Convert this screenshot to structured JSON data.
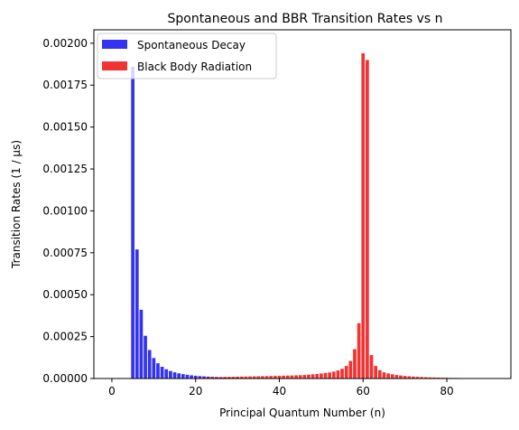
{
  "chart_data": {
    "type": "bar",
    "title": "Spontaneous and BBR Transition Rates vs n",
    "xlabel": "Principal Quantum Number (n)",
    "ylabel": "Transition Rates (1 / μs)",
    "xlim": [
      -4.3,
      95.3
    ],
    "ylim": [
      0,
      0.00208
    ],
    "xticks": [
      0,
      20,
      40,
      60,
      80
    ],
    "yticks": [
      0,
      0.00025,
      0.0005,
      0.00075,
      0.001,
      0.00125,
      0.0015,
      0.00175,
      0.002
    ],
    "ytick_labels": [
      "0.00000",
      "0.00025",
      "0.00050",
      "0.00075",
      "0.00100",
      "0.00125",
      "0.00150",
      "0.00175",
      "0.00200"
    ],
    "grid": false,
    "legend_position": "top-left",
    "series": [
      {
        "name": "Spontaneous Decay",
        "color": "#0000ee",
        "x": [
          5,
          6,
          7,
          8,
          9,
          10,
          11,
          12,
          13,
          14,
          15,
          16,
          17,
          18,
          19,
          20,
          21,
          22,
          23,
          24,
          25,
          26,
          27,
          28,
          29,
          30
        ],
        "values": [
          0.00186,
          0.00077,
          0.00041,
          0.000255,
          0.00017,
          0.000122,
          9.1e-05,
          7e-05,
          5.5e-05,
          4.5e-05,
          3.7e-05,
          3.1e-05,
          2.6e-05,
          2.2e-05,
          1.9e-05,
          1.65e-05,
          1.45e-05,
          1.28e-05,
          1.13e-05,
          1e-05,
          8.9e-06,
          8e-06,
          7.2e-06,
          6.5e-06,
          5.9e-06,
          5.3e-06
        ]
      },
      {
        "name": "Black Body Radiation",
        "color": "#ee0000",
        "x": [
          21,
          22,
          23,
          24,
          25,
          26,
          27,
          28,
          29,
          30,
          31,
          32,
          33,
          34,
          35,
          36,
          37,
          38,
          39,
          40,
          41,
          42,
          43,
          44,
          45,
          46,
          47,
          48,
          49,
          50,
          51,
          52,
          53,
          54,
          55,
          56,
          57,
          58,
          59,
          60,
          61,
          62,
          63,
          64,
          65,
          66,
          67,
          68,
          69,
          70,
          71,
          72,
          73,
          74,
          75,
          76,
          77,
          78,
          79,
          80,
          81,
          82,
          83,
          84,
          85,
          86,
          87,
          88,
          89,
          90
        ],
        "values": [
          6e-06,
          6.5e-06,
          7e-06,
          7.5e-06,
          8e-06,
          8.5e-06,
          9e-06,
          9.5e-06,
          1e-05,
          1.1e-05,
          1.15e-05,
          1.2e-05,
          1.25e-05,
          1.3e-05,
          1.35e-05,
          1.4e-05,
          1.45e-05,
          1.5e-05,
          1.55e-05,
          1.6e-05,
          1.7e-05,
          1.75e-05,
          1.8e-05,
          1.9e-05,
          2e-05,
          2.1e-05,
          2.3e-05,
          2.5e-05,
          2.7e-05,
          3e-05,
          3.3e-05,
          3.6e-05,
          4.1e-05,
          4.8e-05,
          5.8e-05,
          7.5e-05,
          0.000105,
          0.000175,
          0.00033,
          0.00194,
          0.0019,
          0.00014,
          7.5e-05,
          5e-05,
          3.7e-05,
          3e-05,
          2.5e-05,
          2.1e-05,
          1.8e-05,
          1.55e-05,
          1.35e-05,
          1.18e-05,
          1.03e-05,
          9e-06,
          7.9e-06,
          7e-06,
          6.2e-06,
          5.5e-06,
          4.9e-06,
          4.4e-06,
          3.9e-06,
          3.5e-06,
          3.1e-06,
          2.8e-06,
          2.5e-06,
          2.2e-06,
          2e-06,
          1.8e-06,
          1.6e-06,
          1.4e-06
        ]
      }
    ]
  }
}
